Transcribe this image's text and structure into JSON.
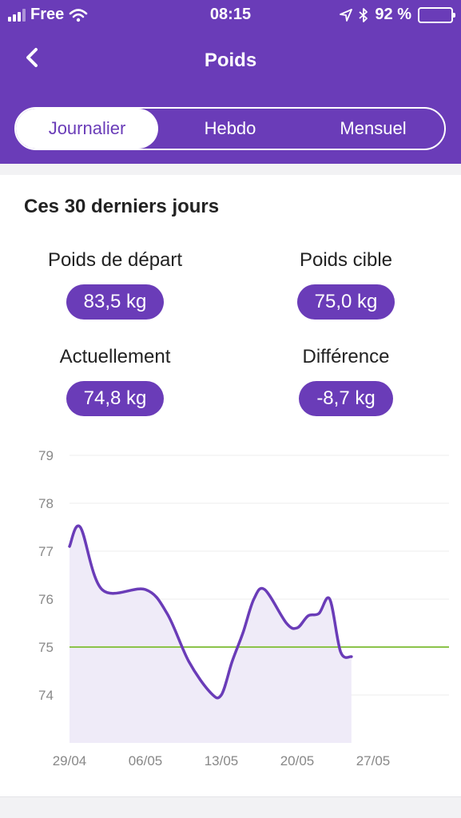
{
  "status_bar": {
    "carrier": "Free",
    "time": "08:15",
    "battery": "92 %"
  },
  "header": {
    "title": "Poids"
  },
  "tabs": [
    {
      "label": "Journalier",
      "active": true
    },
    {
      "label": "Hebdo",
      "active": false
    },
    {
      "label": "Mensuel",
      "active": false
    }
  ],
  "summary": {
    "title": "Ces 30 derniers jours",
    "start_label": "Poids de départ",
    "start_value": "83,5 kg",
    "target_label": "Poids cible",
    "target_value": "75,0 kg",
    "current_label": "Actuellement",
    "current_value": "74,8 kg",
    "diff_label": "Différence",
    "diff_value": "-8,7 kg"
  },
  "colors": {
    "accent": "#6a3cb8",
    "target_line": "#8bc34a",
    "area_fill": "#efebf8"
  },
  "chart_data": {
    "type": "area",
    "y_ticks": [
      79,
      78,
      77,
      76,
      75,
      74
    ],
    "ylim": [
      73,
      79
    ],
    "x_ticks": [
      "29/04",
      "06/05",
      "13/05",
      "20/05",
      "27/05"
    ],
    "x_tick_days": [
      0,
      7,
      14,
      21,
      28
    ],
    "xlim": [
      0,
      35
    ],
    "target": 75.0,
    "series": [
      {
        "x": [
          0,
          1,
          3,
          7,
          9,
          11,
          13,
          14,
          15,
          16,
          17,
          18,
          20,
          21,
          22,
          23,
          24,
          25,
          26
        ],
        "y": [
          77.1,
          77.5,
          76.2,
          76.2,
          75.7,
          74.7,
          74.05,
          74.0,
          74.7,
          75.3,
          76.0,
          76.2,
          75.5,
          75.4,
          75.65,
          75.7,
          76.0,
          74.9,
          74.8
        ]
      }
    ]
  }
}
